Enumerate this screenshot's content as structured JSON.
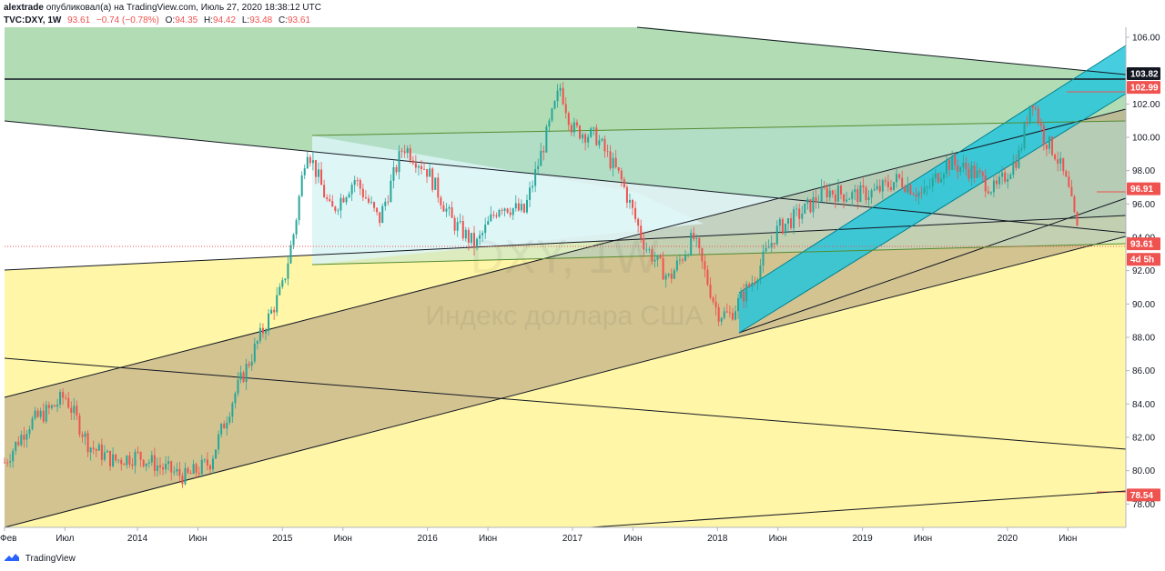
{
  "header": {
    "author": "alextrade",
    "published": "опубликовал(а) на TradingView.com, Июль 27, 2020 18:38:12 UTC",
    "symbol": "TVC:DXY, 1W",
    "last": "93.61",
    "change": "−0.74 (−0.78%)",
    "o_label": "O:",
    "o_value": "94.35",
    "h_label": "H:",
    "h_value": "94.42",
    "l_label": "L:",
    "l_value": "93.48",
    "c_label": "C:",
    "c_value": "93.61"
  },
  "footer": {
    "brand": "TradingView"
  },
  "colors": {
    "up": "#26a69a",
    "down": "#ef5350",
    "dark_label": "#131722",
    "green_zone": "#a5d6a7",
    "yellow_zone": "#fff59d",
    "teal_channel": "#26c6da",
    "light_triangle": "#e0f7fa"
  },
  "chart_data": {
    "type": "candlestick",
    "title": "",
    "watermark": [
      "DXY, 1W",
      "Индекс доллара США"
    ],
    "ylim": [
      76.6,
      106.6
    ],
    "y_ticks": [
      78,
      80,
      82,
      84,
      86,
      88,
      90,
      92,
      94,
      96,
      98,
      100,
      102,
      104,
      106
    ],
    "x_labels": [
      "Фев",
      "Июл",
      "2014",
      "Июн",
      "2015",
      "Июн",
      "2016",
      "Июн",
      "2017",
      "Июн",
      "2018",
      "Июн",
      "2019",
      "Июн",
      "2020",
      "Июн"
    ],
    "close_series": [
      [
        "2013-02",
        80.5
      ],
      [
        "2013-04",
        82.8
      ],
      [
        "2013-06",
        83.8
      ],
      [
        "2013-07",
        84.5
      ],
      [
        "2013-09",
        81.5
      ],
      [
        "2013-11",
        80.6
      ],
      [
        "2014-01",
        80.9
      ],
      [
        "2014-03",
        80.2
      ],
      [
        "2014-05",
        79.6
      ],
      [
        "2014-07",
        80.5
      ],
      [
        "2014-09",
        84.5
      ],
      [
        "2014-11",
        87.8
      ],
      [
        "2015-01",
        91.0
      ],
      [
        "2015-02",
        94.5
      ],
      [
        "2015-03",
        99.5
      ],
      [
        "2015-05",
        95.5
      ],
      [
        "2015-07",
        97.5
      ],
      [
        "2015-09",
        95.0
      ],
      [
        "2015-11",
        99.5
      ],
      [
        "2016-01",
        98.0
      ],
      [
        "2016-03",
        95.0
      ],
      [
        "2016-05",
        93.5
      ],
      [
        "2016-07",
        96.0
      ],
      [
        "2016-09",
        95.5
      ],
      [
        "2016-11",
        100.5
      ],
      [
        "2016-12",
        103.0
      ],
      [
        "2017-01",
        100.5
      ],
      [
        "2017-03",
        100.0
      ],
      [
        "2017-05",
        97.5
      ],
      [
        "2017-07",
        93.5
      ],
      [
        "2017-09",
        91.5
      ],
      [
        "2017-11",
        94.0
      ],
      [
        "2018-01",
        89.5
      ],
      [
        "2018-02",
        89.3
      ],
      [
        "2018-04",
        91.5
      ],
      [
        "2018-06",
        94.5
      ],
      [
        "2018-08",
        95.5
      ],
      [
        "2018-10",
        96.8
      ],
      [
        "2018-12",
        96.5
      ],
      [
        "2019-02",
        96.7
      ],
      [
        "2019-04",
        97.5
      ],
      [
        "2019-06",
        96.5
      ],
      [
        "2019-08",
        98.5
      ],
      [
        "2019-10",
        98.0
      ],
      [
        "2019-12",
        96.8
      ],
      [
        "2020-02",
        99.0
      ],
      [
        "2020-03",
        102.5
      ],
      [
        "2020-04",
        100.0
      ],
      [
        "2020-05",
        99.0
      ],
      [
        "2020-06",
        97.0
      ],
      [
        "2020-07",
        93.6
      ]
    ],
    "horizontal_lines": [
      103.82
    ],
    "price_labels": [
      {
        "text": "103.82",
        "value": 103.82,
        "style": "dark"
      },
      {
        "text": "102.99",
        "value": 102.99,
        "style": "red"
      },
      {
        "text": "96.91",
        "value": 96.91,
        "style": "red"
      },
      {
        "text": "93.61",
        "value": 93.61,
        "style": "red"
      },
      {
        "text": "4d 5h",
        "value": 92.68,
        "style": "red"
      },
      {
        "text": "78.54",
        "value": 78.54,
        "style": "red"
      }
    ]
  }
}
